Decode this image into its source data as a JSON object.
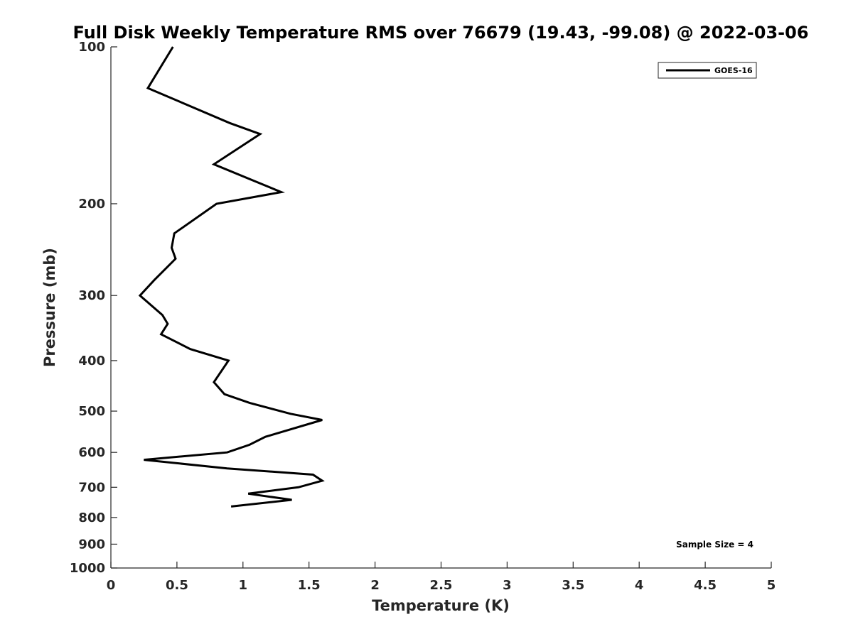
{
  "chart_data": {
    "type": "line",
    "title": "Full Disk Weekly Temperature RMS over 76679 (19.43, -99.08) @ 2022-03-06",
    "xlabel": "Temperature (K)",
    "ylabel": "Pressure (mb)",
    "xlim": [
      0,
      5
    ],
    "ylim": [
      100,
      1000
    ],
    "y_scale": "log",
    "y_reversed": true,
    "x_ticks": [
      "0",
      "0.5",
      "1",
      "1.5",
      "2",
      "2.5",
      "3",
      "3.5",
      "4",
      "4.5",
      "5"
    ],
    "y_ticks": [
      "100",
      "200",
      "300",
      "400",
      "500",
      "600",
      "700",
      "800",
      "900",
      "1000"
    ],
    "grid": false,
    "legend": "top-right",
    "annotation": "Sample Size = 4",
    "series": [
      {
        "name": "GOES-16",
        "color": "#000000",
        "x": [
          0.47,
          0.28,
          0.9,
          1.13,
          0.78,
          1.29,
          0.8,
          0.48,
          0.46,
          0.49,
          0.33,
          0.22,
          0.39,
          0.43,
          0.38,
          0.6,
          0.89,
          0.78,
          0.86,
          1.05,
          1.36,
          1.6,
          1.17,
          1.05,
          0.88,
          0.25,
          0.88,
          1.53,
          1.6,
          1.42,
          1.04,
          1.37,
          0.91
        ],
        "y": [
          100,
          120,
          140,
          147,
          168,
          190,
          200,
          228,
          243,
          255,
          280,
          300,
          327,
          340,
          356,
          380,
          400,
          440,
          464,
          482,
          506,
          520,
          560,
          580,
          600,
          620,
          644,
          662,
          680,
          700,
          720,
          740,
          762
        ]
      }
    ]
  }
}
